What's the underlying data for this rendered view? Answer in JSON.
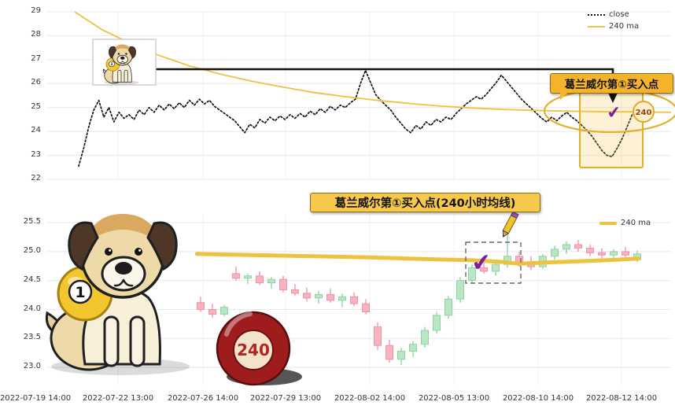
{
  "chart_data": [
    {
      "type": "line",
      "ylim": [
        22,
        29
      ],
      "yticks": [
        22,
        23,
        24,
        25,
        26,
        27,
        28,
        29
      ],
      "grid": true,
      "legend_position": "top-right",
      "series": [
        {
          "name": "close",
          "style": "dotted",
          "color": "#121212",
          "values": [
            22.55,
            23.3,
            24.2,
            24.9,
            25.3,
            24.6,
            25.0,
            24.4,
            24.8,
            24.55,
            24.7,
            24.5,
            24.9,
            24.7,
            25.0,
            24.8,
            25.1,
            24.9,
            25.15,
            24.95,
            25.2,
            25.0,
            25.3,
            25.1,
            25.35,
            25.15,
            25.3,
            25.05,
            24.9,
            24.75,
            24.6,
            24.45,
            24.2,
            23.95,
            24.3,
            24.15,
            24.5,
            24.35,
            24.6,
            24.45,
            24.65,
            24.5,
            24.7,
            24.55,
            24.75,
            24.6,
            24.85,
            24.7,
            24.95,
            24.8,
            25.05,
            24.9,
            25.1,
            25.0,
            25.2,
            25.35,
            26.0,
            26.55,
            26.05,
            25.55,
            25.3,
            25.1,
            24.9,
            24.6,
            24.35,
            24.1,
            23.95,
            24.25,
            24.1,
            24.4,
            24.25,
            24.5,
            24.4,
            24.6,
            24.5,
            24.75,
            24.95,
            25.15,
            25.3,
            25.45,
            25.35,
            25.55,
            25.8,
            26.05,
            26.35,
            26.1,
            25.85,
            25.6,
            25.35,
            25.15,
            24.95,
            24.75,
            24.55,
            24.4,
            24.6,
            24.45,
            24.65,
            24.8,
            24.6,
            24.45,
            24.25,
            24.05,
            23.8,
            23.5,
            23.2,
            23.0,
            22.95,
            23.3,
            23.7,
            24.2,
            24.7,
            25.0
          ]
        },
        {
          "name": "240 ma",
          "style": "solid",
          "color": "#edc240",
          "points": [
            [
              0.044,
              29.0
            ],
            [
              0.088,
              28.25
            ],
            [
              0.132,
              27.7
            ],
            [
              0.177,
              27.2
            ],
            [
              0.227,
              26.75
            ],
            [
              0.277,
              26.4
            ],
            [
              0.328,
              26.1
            ],
            [
              0.378,
              25.85
            ],
            [
              0.429,
              25.62
            ],
            [
              0.479,
              25.45
            ],
            [
              0.53,
              25.3
            ],
            [
              0.58,
              25.17
            ],
            [
              0.631,
              25.06
            ],
            [
              0.681,
              24.98
            ],
            [
              0.731,
              24.92
            ],
            [
              0.782,
              24.88
            ],
            [
              0.832,
              24.85
            ],
            [
              0.883,
              24.83
            ],
            [
              0.933,
              24.82
            ],
            [
              1.0,
              24.8
            ]
          ]
        }
      ],
      "annotations": {
        "callout": "葛兰威尔第①买入点",
        "badge": "240"
      },
      "xtick_labels": [
        "2022-07-19 14:00",
        "2022-07-22 13:00",
        "2022-07-26 14:00",
        "2022-07-29 13:00",
        "2022-08-02 14:00",
        "2022-08-05 13:00",
        "2022-08-10 14:00",
        "2022-08-12 14:00"
      ]
    },
    {
      "type": "candlestick",
      "title": "葛兰威尔第①买入点(240小时均线)",
      "ylim": [
        22.69,
        25.65
      ],
      "yticks": [
        23.0,
        23.5,
        24.0,
        24.5,
        25.0,
        25.5
      ],
      "grid": true,
      "legend_position": "top-right",
      "candles": [
        [
          24.12,
          24.22,
          23.96,
          24.0
        ],
        [
          24.0,
          24.1,
          23.86,
          23.92
        ],
        [
          23.92,
          24.08,
          23.88,
          24.04
        ],
        [
          24.62,
          24.74,
          24.5,
          24.54
        ],
        [
          24.54,
          24.62,
          24.44,
          24.58
        ],
        [
          24.58,
          24.66,
          24.42,
          24.46
        ],
        [
          24.46,
          24.56,
          24.36,
          24.52
        ],
        [
          24.52,
          24.58,
          24.3,
          24.34
        ],
        [
          24.34,
          24.44,
          24.24,
          24.28
        ],
        [
          24.28,
          24.38,
          24.14,
          24.2
        ],
        [
          24.2,
          24.32,
          24.1,
          24.26
        ],
        [
          24.26,
          24.36,
          24.12,
          24.16
        ],
        [
          24.16,
          24.28,
          24.04,
          24.22
        ],
        [
          24.22,
          24.3,
          24.06,
          24.1
        ],
        [
          24.1,
          24.18,
          23.92,
          23.96
        ],
        [
          23.7,
          23.78,
          23.3,
          23.38
        ],
        [
          23.38,
          23.48,
          23.08,
          23.14
        ],
        [
          23.14,
          23.34,
          23.04,
          23.28
        ],
        [
          23.28,
          23.46,
          23.18,
          23.4
        ],
        [
          23.4,
          23.7,
          23.34,
          23.64
        ],
        [
          23.64,
          23.96,
          23.58,
          23.9
        ],
        [
          23.9,
          24.24,
          23.84,
          24.18
        ],
        [
          24.18,
          24.56,
          24.12,
          24.5
        ],
        [
          24.5,
          24.78,
          24.46,
          24.72
        ],
        [
          24.72,
          24.86,
          24.62,
          24.66
        ],
        [
          24.66,
          24.82,
          24.58,
          24.78
        ],
        [
          24.78,
          25.44,
          24.72,
          24.92
        ],
        [
          24.92,
          25.0,
          24.74,
          24.8
        ],
        [
          24.8,
          24.92,
          24.68,
          24.74
        ],
        [
          24.74,
          24.96,
          24.7,
          24.92
        ],
        [
          24.92,
          25.1,
          24.86,
          25.04
        ],
        [
          25.04,
          25.18,
          24.96,
          25.12
        ],
        [
          25.12,
          25.2,
          25.0,
          25.06
        ],
        [
          25.06,
          25.12,
          24.92,
          24.98
        ],
        [
          24.98,
          25.06,
          24.88,
          24.94
        ],
        [
          24.94,
          25.04,
          24.84,
          25.0
        ],
        [
          25.0,
          25.08,
          24.88,
          24.94
        ],
        [
          24.86,
          25.02,
          24.82,
          24.96
        ]
      ],
      "series": [
        {
          "name": "240 ma",
          "style": "solid-thick",
          "color": "#edc240",
          "points": [
            [
              0.24,
              24.96
            ],
            [
              0.328,
              24.94
            ],
            [
              0.429,
              24.92
            ],
            [
              0.517,
              24.9
            ],
            [
              0.605,
              24.87
            ],
            [
              0.681,
              24.85
            ],
            [
              0.731,
              24.82
            ],
            [
              0.757,
              24.79
            ],
            [
              0.794,
              24.81
            ],
            [
              0.845,
              24.83
            ],
            [
              0.895,
              24.85
            ],
            [
              0.948,
              24.88
            ]
          ]
        }
      ],
      "xtick_labels": [
        "2022-07-19 14:00",
        "2022-07-22 13:00",
        "2022-07-26 14:00",
        "2022-07-29 13:00",
        "2022-08-02 14:00",
        "2022-08-05 13:00",
        "2022-08-10 14:00",
        "2022-08-12 14:00"
      ]
    }
  ],
  "icons": {
    "buy_check": "✔"
  },
  "mascot": {
    "ball_one_label": "1",
    "ball_240_label": "240"
  },
  "colors": {
    "ma_yellow": "#edc240",
    "close_black": "#121212",
    "candle_up_fill": "#b9e6c3",
    "candle_up_border": "#8fd3a3",
    "candle_down_fill": "#f7b3c0",
    "candle_down_border": "#ef92a6",
    "highlight_yellow": "#e3ae2a",
    "check_purple": "#7b1fa2",
    "callout_bg": "#f4b32a"
  }
}
